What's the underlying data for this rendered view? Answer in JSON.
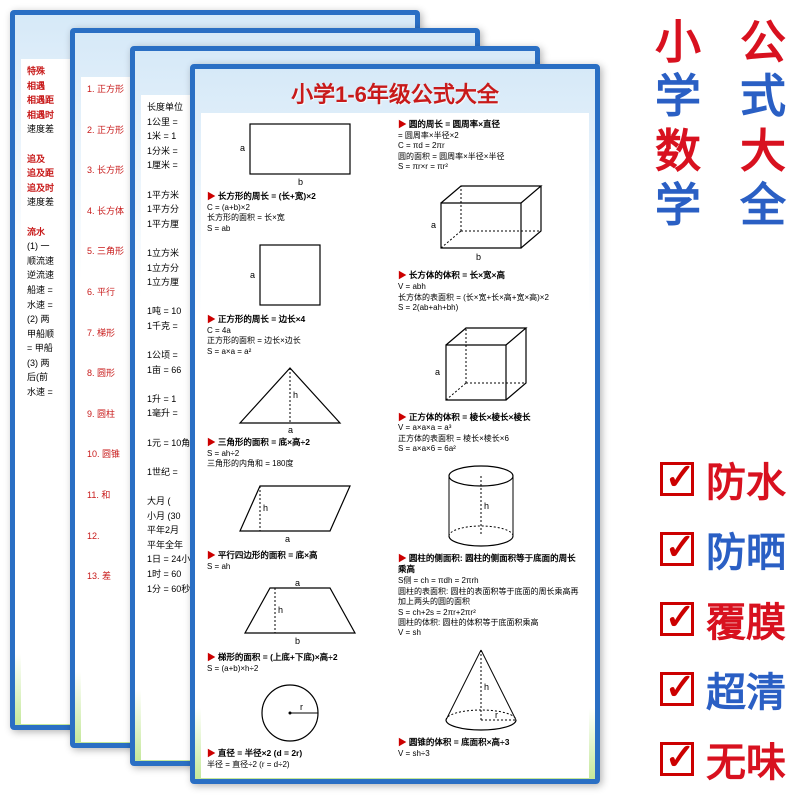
{
  "colors": {
    "border": "#2a6fc4",
    "title": "#c81a1a",
    "section_red": "#c81a1a",
    "side_red": "#d8111f",
    "side_blue": "#2a5fc4",
    "feature_check": "#cc0000"
  },
  "poster": {
    "title": "小学1-6年级公式大全"
  },
  "poster1": {
    "lines": [
      "特殊",
      "相遇",
      "相遇距",
      "相遇时",
      "速度差",
      "",
      "追及",
      "追及距",
      "追及时",
      "速度差",
      "",
      "流水",
      "(1) 一",
      "顺流速",
      "逆流速",
      "船速 =",
      "水速 =",
      "(2) 两",
      "甲船顺",
      "= 甲船",
      "(3) 两",
      "后(前",
      "水速 ="
    ]
  },
  "poster2": {
    "lines": [
      "1. 正方形",
      "2. 正方形",
      "3. 长方形",
      "4. 长方体",
      "5. 三角形",
      "6. 平行",
      "7. 梯形",
      "8. 圆形",
      "9. 圆柱",
      "10. 圆锥",
      "11. 和",
      "12.",
      "13. 差"
    ]
  },
  "poster3": {
    "lines": [
      "长度单位",
      "1公里 =",
      "1米 = 1",
      "1分米 =",
      "1厘米 =",
      "",
      "1平方米",
      "1平方分",
      "1平方厘",
      "",
      "1立方米",
      "1立方分",
      "1立方厘",
      "",
      "1吨 = 10",
      "1千克 =",
      "",
      "1公顷 =",
      "1亩 = 66",
      "",
      "1升 = 1",
      "1毫升 =",
      "",
      "1元 = 10角",
      "",
      "1世纪 =",
      "",
      "大月 (",
      "小月 (30",
      "平年2月",
      "平年全年",
      "1日 = 24小",
      "1时 = 60",
      "1分 = 60秒"
    ]
  },
  "shapes_left": [
    {
      "title": "长方形的周长 = (长+宽)×2",
      "desc": "C = (a+b)×2\n长方形的面积 = 长×宽\nS = ab",
      "svg": "rect_ab"
    },
    {
      "title": "正方形的周长 = 边长×4",
      "desc": "C = 4a\n正方形的面积 = 边长×边长\nS = a×a = a²",
      "svg": "square"
    },
    {
      "title": "三角形的面积 = 底×高÷2",
      "desc": "S = ah÷2\n三角形的内角和 = 180度",
      "svg": "triangle"
    },
    {
      "title": "平行四边形的面积 = 底×高",
      "desc": "S = ah",
      "svg": "para"
    },
    {
      "title": "梯形的面积 = (上底+下底)×高÷2",
      "desc": "S = (a+b)×h÷2",
      "svg": "trap"
    },
    {
      "title": "直径 = 半径×2 (d = 2r)",
      "desc": "半径 = 直径÷2 (r = d÷2)",
      "svg": "circle"
    }
  ],
  "shapes_right": [
    {
      "title": "圆的周长 = 圆周率×直径",
      "desc": " = 圆周率×半径×2\nC = πd = 2πr\n圆的面积 = 圆周率×半径×半径\nS = πr×r = πr²",
      "svg": ""
    },
    {
      "title": "长方体的体积 = 长×宽×高",
      "desc": "V = abh\n长方体的表面积 = (长×宽+长×高+宽×高)×2\nS = 2(ab+ah+bh)",
      "svg": "cuboid"
    },
    {
      "title": "正方体的体积 = 棱长×棱长×棱长",
      "desc": "V = a×a×a = a³\n正方体的表面积 = 棱长×棱长×6\nS = a×a×6 = 6a²",
      "svg": "cube"
    },
    {
      "title": "圆柱的侧面积: 圆柱的侧面积等于底面的周长乘高",
      "desc": "S侧 = ch = πdh = 2πrh\n圆柱的表面积: 圆柱的表面积等于底面的周长乘高再加上两头的圆的面积\nS = ch+2s = 2πr+2πr²\n圆柱的体积: 圆柱的体积等于底面积乘高\nV = sh",
      "svg": "cylinder"
    },
    {
      "title": "圆锥的体积 = 底面积×高÷3",
      "desc": "V = sh÷3",
      "svg": "cone"
    }
  ],
  "side_title": {
    "col1": [
      "小",
      "学",
      "数",
      "学"
    ],
    "col2": [
      "公",
      "式",
      "大",
      "全"
    ]
  },
  "features": [
    {
      "text": "防水",
      "color": "#d8111f"
    },
    {
      "text": "防晒",
      "color": "#2a5fc4"
    },
    {
      "text": "覆膜",
      "color": "#d8111f"
    },
    {
      "text": "超清",
      "color": "#2a5fc4"
    },
    {
      "text": "无味",
      "color": "#d8111f"
    }
  ]
}
